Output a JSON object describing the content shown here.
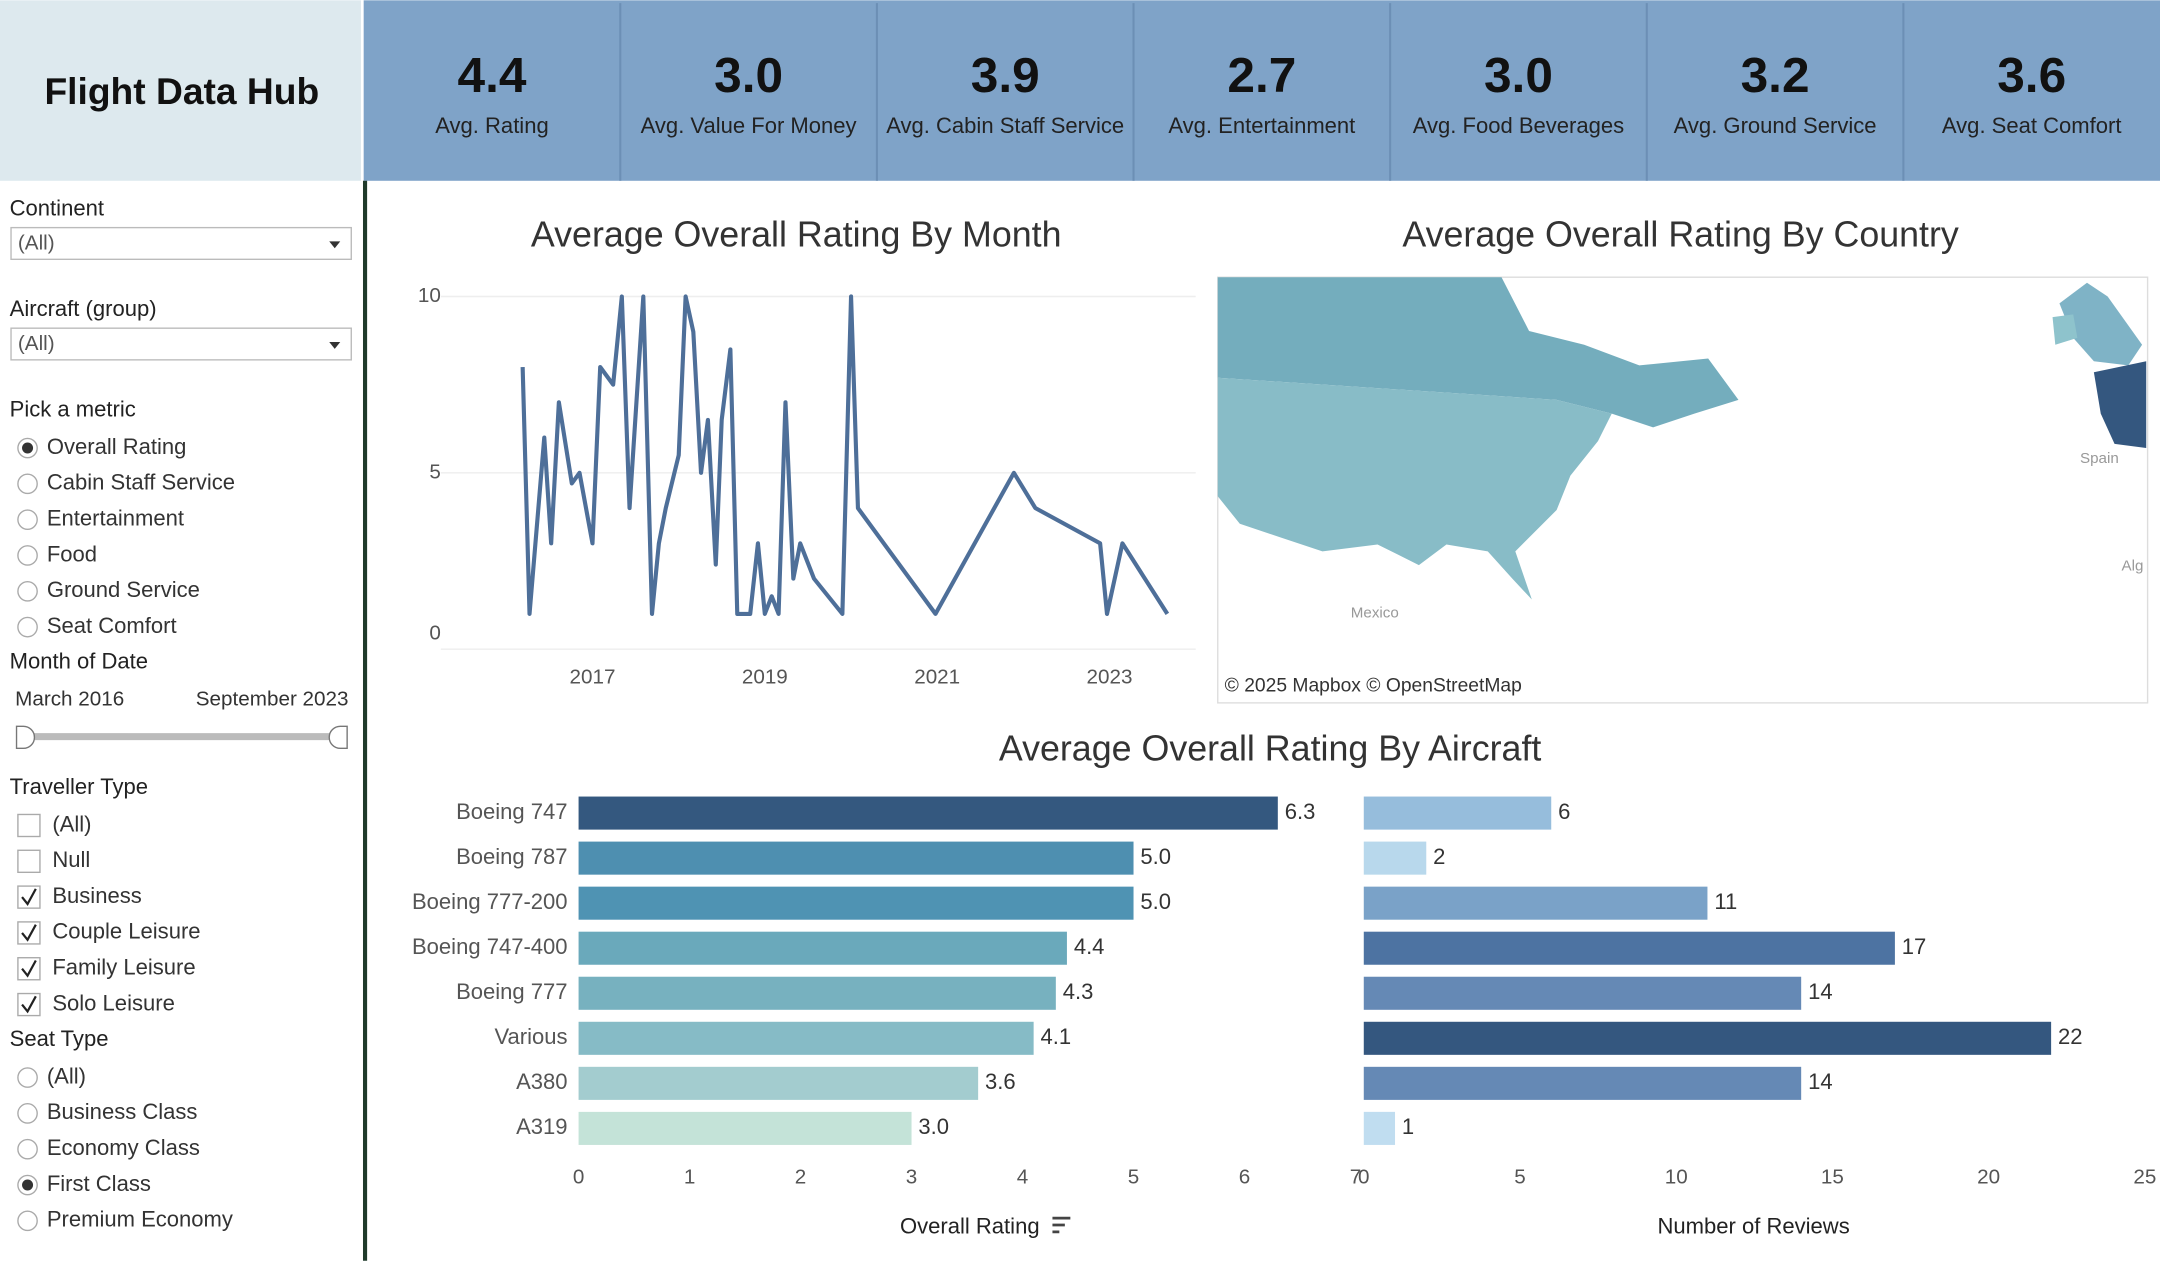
{
  "header": {
    "title": "Flight Data Hub"
  },
  "kpis": [
    {
      "value": "4.4",
      "label": "Avg. Rating"
    },
    {
      "value": "3.0",
      "label": "Avg. Value For Money"
    },
    {
      "value": "3.9",
      "label": "Avg. Cabin Staff Service"
    },
    {
      "value": "2.7",
      "label": "Avg. Entertainment"
    },
    {
      "value": "3.0",
      "label": "Avg. Food Beverages"
    },
    {
      "value": "3.2",
      "label": "Avg. Ground Service"
    },
    {
      "value": "3.6",
      "label": "Avg. Seat Comfort"
    }
  ],
  "filters": {
    "continent": {
      "label": "Continent",
      "value": "(All)"
    },
    "aircraft": {
      "label": "Aircraft (group)",
      "value": "(All)"
    },
    "metric": {
      "label": "Pick a metric",
      "options": [
        "Overall Rating",
        "Cabin Staff Service",
        "Entertainment",
        "Food",
        "Ground Service",
        "Seat Comfort"
      ],
      "selected": 0
    },
    "month": {
      "label": "Month of Date",
      "start": "March 2016",
      "end": "September 2023"
    },
    "traveller": {
      "label": "Traveller Type",
      "options": [
        "(All)",
        "Null",
        "Business",
        "Couple Leisure",
        "Family Leisure",
        "Solo Leisure"
      ],
      "checked": [
        false,
        false,
        true,
        true,
        true,
        true
      ]
    },
    "seat": {
      "label": "Seat Type",
      "options": [
        "(All)",
        "Business Class",
        "Economy Class",
        "First Class",
        "Premium Economy"
      ],
      "selected": 3
    }
  },
  "map": {
    "title": "Average Overall Rating By Country",
    "attribution": "© 2025 Mapbox  © OpenStreetMap",
    "place_labels": [
      "Mexico",
      "Spain",
      "Alg"
    ]
  },
  "chart_data": [
    {
      "type": "line",
      "title": "Average Overall Rating By Month",
      "color": "#4e6f99",
      "x": [
        2016.19,
        2016.27,
        2016.44,
        2016.52,
        2016.61,
        2016.76,
        2016.85,
        2017.0,
        2017.09,
        2017.24,
        2017.34,
        2017.43,
        2017.59,
        2017.69,
        2017.77,
        2017.85,
        2018.0,
        2018.08,
        2018.17,
        2018.26,
        2018.34,
        2018.43,
        2018.5,
        2018.6,
        2018.68,
        2018.83,
        2018.92,
        2019.0,
        2019.08,
        2019.16,
        2019.24,
        2019.33,
        2019.41,
        2019.57,
        2019.9,
        2020.0,
        2020.08,
        2020.98,
        2021.89,
        2022.14,
        2022.89,
        2022.97,
        2023.15,
        2023.67
      ],
      "values": [
        8,
        1,
        6,
        3,
        7,
        4.7,
        5,
        3,
        8,
        7.5,
        10,
        4,
        10,
        1,
        3,
        4,
        5.5,
        10,
        9,
        5,
        6.5,
        2.4,
        6.5,
        8.5,
        1,
        1,
        3,
        1,
        1.5,
        1,
        7,
        2,
        3,
        2,
        1,
        10,
        4,
        1,
        5,
        4,
        3,
        1,
        3,
        1
      ],
      "xlim": [
        2015.4,
        2024.0
      ],
      "xticks": [
        2017,
        2019,
        2021,
        2023
      ],
      "ylim": [
        0,
        10
      ],
      "yticks": [
        0,
        5,
        10
      ],
      "grid": true
    },
    {
      "type": "bar",
      "orientation": "horizontal",
      "title": "Average Overall Rating By Aircraft",
      "xlabel": "Overall Rating",
      "categories": [
        "Boeing 747",
        "Boeing 787",
        "Boeing 777-200",
        "Boeing 747-400",
        "Boeing 777",
        "Various",
        "A380",
        "A319"
      ],
      "values": [
        6.3,
        5.0,
        5.0,
        4.4,
        4.3,
        4.1,
        3.6,
        3.0
      ],
      "value_labels": [
        "6.3",
        "5.0",
        "5.0",
        "4.4",
        "4.3",
        "4.1",
        "3.6",
        "3.0"
      ],
      "colors": [
        "#34587f",
        "#4e8fb0",
        "#4f93b3",
        "#6aa9bb",
        "#77b1bf",
        "#86bbc6",
        "#a3cccf",
        "#c4e3d8"
      ],
      "xlim": [
        0,
        7
      ],
      "xticks": [
        0,
        1,
        2,
        3,
        4,
        5,
        6,
        7
      ]
    },
    {
      "type": "bar",
      "orientation": "horizontal",
      "xlabel": "Number of Reviews",
      "values": [
        6,
        2,
        11,
        17,
        14,
        22,
        14,
        1
      ],
      "colors": [
        "#96bddc",
        "#b8d8ec",
        "#7aa2c8",
        "#4d73a2",
        "#6589b5",
        "#34577f",
        "#6589b5",
        "#c0ddf0"
      ],
      "xlim": [
        0,
        25
      ],
      "xticks": [
        0,
        5,
        10,
        15,
        20,
        25
      ]
    }
  ]
}
